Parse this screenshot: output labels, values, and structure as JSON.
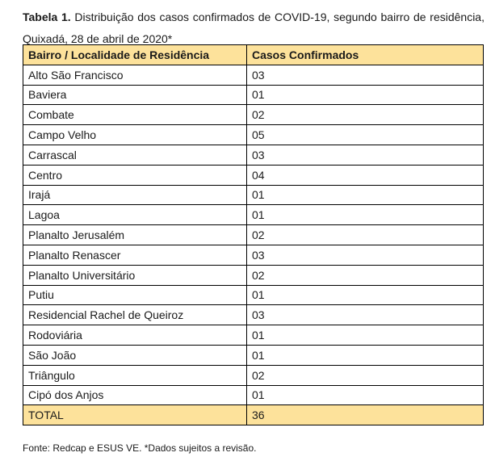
{
  "page": {
    "background_color": "#ffffff",
    "text_color": "#1a1a1a"
  },
  "title": {
    "label_bold": "Tabela 1.",
    "text": " Distribuição dos casos confirmados de COVID-19, segundo bairro de residência, Quixadá, 28 de abril de 2020*"
  },
  "table": {
    "accent_color": "#FDE29B",
    "border_color": "#000000",
    "headers": {
      "col1": "Bairro / Localidade de Residência",
      "col2": "Casos Confirmados"
    },
    "rows": [
      {
        "bairro": "Alto São Francisco",
        "casos": "03"
      },
      {
        "bairro": "Baviera",
        "casos": "01"
      },
      {
        "bairro": "Combate",
        "casos": "02"
      },
      {
        "bairro": "Campo Velho",
        "casos": "05"
      },
      {
        "bairro": "Carrascal",
        "casos": "03"
      },
      {
        "bairro": "Centro",
        "casos": "04"
      },
      {
        "bairro": "Irajá",
        "casos": "01"
      },
      {
        "bairro": "Lagoa",
        "casos": "01"
      },
      {
        "bairro": "Planalto Jerusalém",
        "casos": "02"
      },
      {
        "bairro": "Planalto Renascer",
        "casos": "03"
      },
      {
        "bairro": "Planalto Universitário",
        "casos": "02"
      },
      {
        "bairro": "Putiu",
        "casos": "01"
      },
      {
        "bairro": "Residencial Rachel de Queiroz",
        "casos": "03"
      },
      {
        "bairro": "Rodoviária",
        "casos": "01"
      },
      {
        "bairro": "São João",
        "casos": "01"
      },
      {
        "bairro": "Triângulo",
        "casos": "02"
      },
      {
        "bairro": "Cipó dos Anjos",
        "casos": "01"
      }
    ],
    "total": {
      "label": "TOTAL",
      "value": "36"
    }
  },
  "footer": {
    "text": "Fonte: Redcap e ESUS VE. *Dados sujeitos a revisão."
  }
}
